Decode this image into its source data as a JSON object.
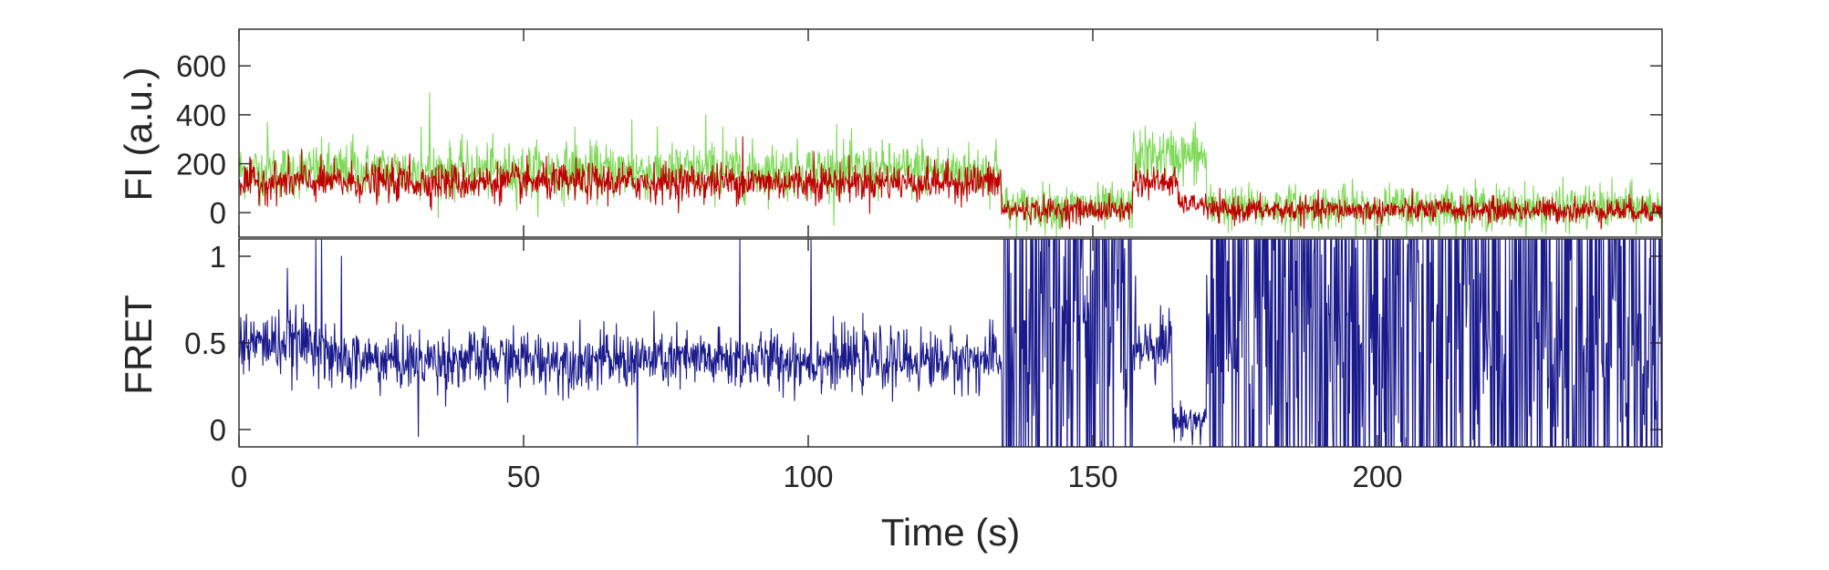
{
  "chart_data": [
    {
      "type": "line",
      "ylabel": "FI (a.u.)",
      "xlim": [
        0,
        250
      ],
      "ylim": [
        -100,
        750
      ],
      "yticks": [
        0,
        200,
        400,
        600
      ],
      "grid": false,
      "series": [
        {
          "color": "#7ed957",
          "segments": [
            {
              "x": [
                0,
                134
              ],
              "level": 170,
              "noise": 55
            },
            {
              "x": [
                134,
                157
              ],
              "level": 20,
              "noise": 45
            },
            {
              "x": [
                157,
                170
              ],
              "level": 230,
              "noise": 55
            },
            {
              "x": [
                170,
                250
              ],
              "level": 20,
              "noise": 45
            }
          ],
          "spikes": [
            {
              "x": 5,
              "y": 370
            },
            {
              "x": 20,
              "y": 320
            },
            {
              "x": 32,
              "y": 350
            },
            {
              "x": 33.5,
              "y": 490
            },
            {
              "x": 59,
              "y": 350
            },
            {
              "x": 69,
              "y": 380
            },
            {
              "x": 82,
              "y": 400
            },
            {
              "x": 85,
              "y": 350
            },
            {
              "x": 105,
              "y": 360
            },
            {
              "x": 120,
              "y": 300
            },
            {
              "x": 133,
              "y": 300
            },
            {
              "x": 168,
              "y": 370
            }
          ]
        },
        {
          "color": "#c00000",
          "segments": [
            {
              "x": [
                0,
                134
              ],
              "level": 125,
              "noise": 38
            },
            {
              "x": [
                134,
                157
              ],
              "level": 10,
              "noise": 25
            },
            {
              "x": [
                157,
                165
              ],
              "level": 125,
              "noise": 30
            },
            {
              "x": [
                165,
                170
              ],
              "level": 35,
              "noise": 20
            },
            {
              "x": [
                170,
                250
              ],
              "level": 10,
              "noise": 25
            }
          ],
          "spikes": [
            {
              "x": 11,
              "y": 260
            },
            {
              "x": 88.5,
              "y": 310
            },
            {
              "x": 30,
              "y": 240
            },
            {
              "x": 101,
              "y": 250
            },
            {
              "x": 157.5,
              "y": 200
            }
          ]
        }
      ]
    },
    {
      "type": "line",
      "ylabel": "FRET",
      "xlabel": "Time (s)",
      "xlim": [
        0,
        250
      ],
      "ylim": [
        -0.1,
        1.1
      ],
      "xticks": [
        0,
        50,
        100,
        150,
        200
      ],
      "yticks": [
        0,
        0.5,
        1
      ],
      "grid": false,
      "series": [
        {
          "color": "#1a1a8c",
          "segments": [
            {
              "x": [
                0,
                15
              ],
              "level": 0.5,
              "noise": 0.09,
              "mode": "normal"
            },
            {
              "x": [
                15,
                134
              ],
              "level": 0.4,
              "noise": 0.085,
              "mode": "normal"
            },
            {
              "x": [
                134,
                157
              ],
              "level": 0.5,
              "noise": 0.6,
              "mode": "wild"
            },
            {
              "x": [
                157,
                164
              ],
              "level": 0.5,
              "noise": 0.09,
              "mode": "normal"
            },
            {
              "x": [
                164,
                170
              ],
              "level": 0.05,
              "noise": 0.05,
              "mode": "normal"
            },
            {
              "x": [
                170,
                250
              ],
              "level": 0.5,
              "noise": 0.6,
              "mode": "wild"
            }
          ],
          "spikes": [
            {
              "x": 13.5,
              "y": 1.1
            },
            {
              "x": 14.5,
              "y": 1.1
            },
            {
              "x": 88,
              "y": 1.1
            },
            {
              "x": 100.5,
              "y": 1.1
            },
            {
              "x": 70,
              "y": -0.09
            },
            {
              "x": 31.5,
              "y": -0.04
            },
            {
              "x": 18,
              "y": 1.0
            },
            {
              "x": 8.5,
              "y": 0.93
            }
          ]
        }
      ]
    }
  ]
}
